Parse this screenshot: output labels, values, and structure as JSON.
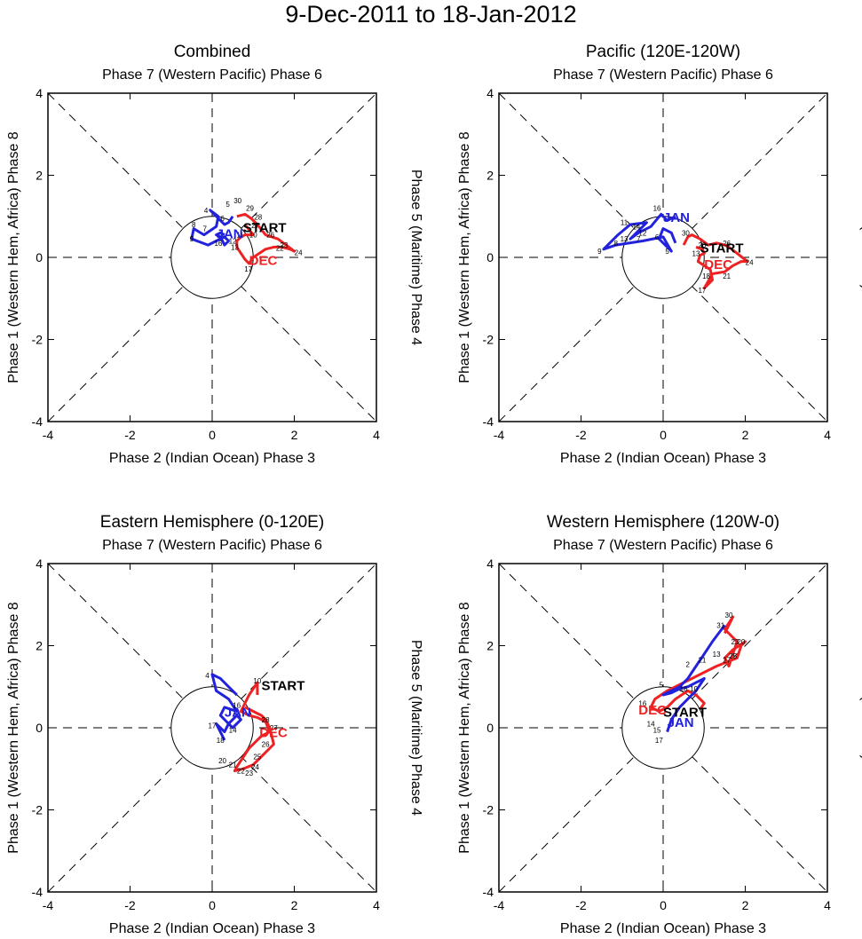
{
  "title": "9-Dec-2011 to 18-Jan-2012",
  "colors": {
    "dec": "#ee2222",
    "jan": "#2222dd",
    "axis": "#000000"
  },
  "common": {
    "top_label": "Phase 7 (Western Pacific) Phase 6",
    "bottom_label": "Phase 2 (Indian Ocean) Phase 3",
    "left_label": "Phase 1 (Western Hem, Africa) Phase 8",
    "right_label": "Phase 5 (Maritime) Phase 4",
    "start_label": "START",
    "dec_label": "DEC",
    "jan_label": "JAN",
    "ticks": [
      "-4",
      "-2",
      "0",
      "2",
      "4"
    ]
  },
  "chart_data": [
    {
      "type": "line",
      "title": "Combined",
      "xlim": [
        -4,
        4
      ],
      "ylim": [
        -4,
        4
      ],
      "series": [
        {
          "name": "DEC",
          "days": [
            9,
            10,
            11,
            12,
            13,
            14,
            15,
            16,
            17,
            18,
            19,
            20,
            21,
            22,
            23,
            24,
            25,
            26,
            27,
            28,
            29,
            30,
            31
          ],
          "x": [
            0.8,
            1.0,
            0.8,
            0.7,
            0.6,
            0.6,
            0.7,
            0.8,
            0.9,
            1.0,
            1.15,
            1.3,
            1.5,
            1.7,
            1.9,
            2.0,
            1.8,
            1.6,
            1.3,
            1.1,
            0.95,
            0.8,
            0.6
          ],
          "y": [
            0.8,
            0.55,
            0.55,
            0.5,
            0.4,
            0.25,
            0.1,
            -0.05,
            -0.15,
            0.0,
            0.1,
            0.2,
            0.25,
            0.25,
            0.2,
            0.15,
            0.3,
            0.45,
            0.55,
            0.8,
            0.95,
            1.05,
            1.0
          ]
        },
        {
          "name": "JAN",
          "days": [
            1,
            2,
            3,
            4,
            5,
            6,
            7,
            8,
            9,
            10,
            11,
            12,
            13,
            14,
            15,
            16,
            17,
            18
          ],
          "x": [
            0.5,
            0.4,
            0.3,
            -0.05,
            0.15,
            0.1,
            -0.2,
            -0.45,
            -0.5,
            -0.1,
            0.1,
            0.3,
            0.4,
            0.3,
            0.2,
            0.1,
            0.2,
            0.3
          ],
          "y": [
            1.0,
            0.85,
            0.8,
            1.15,
            1.0,
            0.75,
            0.55,
            0.7,
            0.45,
            0.3,
            0.4,
            0.5,
            0.4,
            0.3,
            0.5,
            0.55,
            0.6,
            0.55
          ]
        }
      ],
      "day_labels": [
        {
          "t": "4",
          "x": -0.15,
          "y": 1.15
        },
        {
          "t": "6",
          "x": 0.25,
          "y": 0.95
        },
        {
          "t": "5",
          "x": 0.38,
          "y": 1.3
        },
        {
          "t": "30",
          "x": 0.62,
          "y": 1.38
        },
        {
          "t": "29",
          "x": 0.92,
          "y": 1.2
        },
        {
          "t": "28",
          "x": 1.12,
          "y": 0.98
        },
        {
          "t": "27",
          "x": 1.05,
          "y": 0.78
        },
        {
          "t": "8",
          "x": -0.45,
          "y": 0.8
        },
        {
          "t": "7",
          "x": -0.18,
          "y": 0.7
        },
        {
          "t": "9",
          "x": -0.5,
          "y": 0.45
        },
        {
          "t": "11",
          "x": 0.68,
          "y": 0.55
        },
        {
          "t": "10",
          "x": 1.0,
          "y": 0.55
        },
        {
          "t": "26",
          "x": 1.42,
          "y": 0.55
        },
        {
          "t": "12",
          "x": 0.5,
          "y": 0.4
        },
        {
          "t": "13",
          "x": 0.55,
          "y": 0.25
        },
        {
          "t": "16",
          "x": 0.15,
          "y": 0.35
        },
        {
          "t": "23",
          "x": 1.75,
          "y": 0.3
        },
        {
          "t": "22",
          "x": 1.65,
          "y": 0.23
        },
        {
          "t": "24",
          "x": 2.1,
          "y": 0.12
        },
        {
          "t": "17",
          "x": 0.88,
          "y": -0.28
        }
      ],
      "start_pos": [
        0.75,
        0.75
      ],
      "dec_pos": [
        0.9,
        -0.05
      ],
      "jan_pos": [
        0.1,
        0.6
      ]
    },
    {
      "type": "line",
      "title": "Pacific (120E-120W)",
      "xlim": [
        -4,
        4
      ],
      "ylim": [
        -4,
        4
      ],
      "series": [
        {
          "name": "DEC",
          "days": [
            9,
            10,
            11,
            12,
            13,
            14,
            15,
            16,
            17,
            18,
            19,
            20,
            21,
            22,
            23,
            24,
            25,
            26,
            27,
            28,
            29,
            30,
            31
          ],
          "x": [
            0.8,
            0.95,
            1.0,
            0.9,
            0.85,
            1.0,
            1.15,
            1.2,
            1.0,
            1.2,
            1.5,
            1.7,
            1.9,
            2.05,
            1.8,
            1.6,
            1.5,
            1.3,
            1.1,
            0.9,
            0.7,
            0.6,
            0.5
          ],
          "y": [
            0.25,
            0.2,
            0.1,
            0.05,
            -0.1,
            -0.2,
            -0.3,
            -0.55,
            -0.75,
            -0.4,
            -0.35,
            -0.2,
            -0.1,
            -0.1,
            0.1,
            0.25,
            0.3,
            0.35,
            0.3,
            0.45,
            0.55,
            0.5,
            0.3
          ]
        },
        {
          "name": "JAN",
          "days": [
            1,
            2,
            3,
            4,
            5,
            6,
            7,
            8,
            9,
            10,
            11,
            12,
            13,
            14,
            15,
            16,
            17,
            18
          ],
          "x": [
            0.3,
            0.2,
            0.0,
            -0.1,
            0.2,
            0.0,
            -0.5,
            -1.15,
            -1.45,
            -1.1,
            -0.8,
            -0.4,
            -0.8,
            -0.6,
            -0.3,
            -0.05,
            0.1,
            0.3
          ],
          "y": [
            0.35,
            0.6,
            0.7,
            0.45,
            0.15,
            0.5,
            0.4,
            0.3,
            0.2,
            0.55,
            0.8,
            0.85,
            0.45,
            0.6,
            0.75,
            1.05,
            0.9,
            1.0
          ]
        }
      ],
      "day_labels": [
        {
          "t": "16",
          "x": -0.15,
          "y": 1.2
        },
        {
          "t": "14",
          "x": -0.65,
          "y": 0.75
        },
        {
          "t": "11",
          "x": -0.95,
          "y": 0.85
        },
        {
          "t": "13",
          "x": -0.95,
          "y": 0.45
        },
        {
          "t": "12",
          "x": -0.5,
          "y": 0.6
        },
        {
          "t": "8",
          "x": -1.15,
          "y": 0.35
        },
        {
          "t": "9",
          "x": -1.55,
          "y": 0.15
        },
        {
          "t": "7",
          "x": -0.6,
          "y": 0.45
        },
        {
          "t": "6",
          "x": -0.15,
          "y": 0.5
        },
        {
          "t": "5",
          "x": 0.1,
          "y": 0.15
        },
        {
          "t": "30",
          "x": 0.55,
          "y": 0.6
        },
        {
          "t": "20",
          "x": 0.95,
          "y": 0.3
        },
        {
          "t": "13",
          "x": 0.8,
          "y": 0.1
        },
        {
          "t": "26",
          "x": 1.55,
          "y": 0.35
        },
        {
          "t": "24",
          "x": 2.1,
          "y": -0.12
        },
        {
          "t": "18",
          "x": 1.05,
          "y": -0.45
        },
        {
          "t": "21",
          "x": 1.55,
          "y": -0.45
        },
        {
          "t": "17",
          "x": 0.95,
          "y": -0.8
        }
      ],
      "start_pos": [
        0.9,
        0.25
      ],
      "dec_pos": [
        1.0,
        -0.15
      ],
      "jan_pos": [
        0.0,
        1.0
      ]
    },
    {
      "type": "line",
      "title": "Eastern Hemisphere (0-120E)",
      "xlim": [
        -4,
        4
      ],
      "ylim": [
        -4,
        4
      ],
      "series": [
        {
          "name": "DEC",
          "days": [
            9,
            10,
            11,
            12,
            13,
            14,
            15,
            16,
            17,
            18,
            19,
            20,
            21,
            22,
            23,
            24,
            25,
            26,
            27,
            28,
            29,
            30,
            31
          ],
          "x": [
            1.1,
            1.1,
            0.9,
            0.7,
            0.8,
            0.9,
            1.1,
            1.3,
            1.4,
            1.2,
            0.9,
            0.7,
            0.6,
            0.55,
            0.75,
            1.0,
            1.2,
            1.5,
            1.4,
            1.3,
            1.2,
            1.0,
            0.8
          ],
          "y": [
            0.8,
            1.1,
            0.8,
            0.4,
            0.35,
            0.3,
            0.25,
            0.15,
            -0.1,
            -0.2,
            -0.5,
            -0.8,
            -0.95,
            -1.05,
            -1.0,
            -0.9,
            -0.7,
            -0.4,
            0.0,
            0.2,
            0.3,
            0.4,
            0.5
          ]
        },
        {
          "name": "JAN",
          "days": [
            1,
            2,
            3,
            4,
            5,
            6,
            7,
            8,
            9,
            10,
            11,
            12,
            13,
            14,
            15,
            16,
            17,
            18
          ],
          "x": [
            0.6,
            0.4,
            0.2,
            0.0,
            0.1,
            0.4,
            0.6,
            0.3,
            0.2,
            0.4,
            0.5,
            0.7,
            0.6,
            0.4,
            0.3,
            0.2,
            0.1,
            0.3
          ],
          "y": [
            0.8,
            1.0,
            1.2,
            1.3,
            0.9,
            0.7,
            0.4,
            0.5,
            0.3,
            0.1,
            0.0,
            0.2,
            0.3,
            0.1,
            -0.1,
            0.0,
            0.1,
            -0.3
          ]
        }
      ],
      "day_labels": [
        {
          "t": "4",
          "x": -0.12,
          "y": 1.28
        },
        {
          "t": "10",
          "x": 1.1,
          "y": 1.15
        },
        {
          "t": "16",
          "x": 0.6,
          "y": 0.55
        },
        {
          "t": "17",
          "x": 0.0,
          "y": 0.05
        },
        {
          "t": "14",
          "x": 0.5,
          "y": -0.05
        },
        {
          "t": "18",
          "x": 0.2,
          "y": -0.3
        },
        {
          "t": "20",
          "x": 0.25,
          "y": -0.8
        },
        {
          "t": "21",
          "x": 0.5,
          "y": -0.9
        },
        {
          "t": "22",
          "x": 0.7,
          "y": -1.05
        },
        {
          "t": "23",
          "x": 0.9,
          "y": -1.1
        },
        {
          "t": "24",
          "x": 1.05,
          "y": -0.95
        },
        {
          "t": "25",
          "x": 1.1,
          "y": -0.7
        },
        {
          "t": "26",
          "x": 1.3,
          "y": -0.4
        },
        {
          "t": "27",
          "x": 1.5,
          "y": 0.0
        },
        {
          "t": "28",
          "x": 1.3,
          "y": 0.2
        }
      ],
      "start_pos": [
        1.2,
        1.05
      ],
      "dec_pos": [
        1.15,
        -0.1
      ],
      "jan_pos": [
        0.3,
        0.4
      ]
    },
    {
      "type": "line",
      "title": "Western Hemisphere (120W-0)",
      "xlim": [
        -4,
        4
      ],
      "ylim": [
        -4,
        4
      ],
      "series": [
        {
          "name": "DEC",
          "days": [
            9,
            10,
            11,
            12,
            13,
            14,
            15,
            16,
            17,
            18,
            19,
            20,
            21,
            22,
            23,
            24,
            25,
            26,
            27,
            28,
            29,
            30,
            31
          ],
          "x": [
            0.9,
            1.0,
            0.8,
            0.6,
            0.3,
            0.1,
            -0.1,
            -0.3,
            -0.2,
            0.1,
            0.5,
            0.9,
            1.3,
            1.8,
            1.9,
            2.0,
            1.7,
            1.5,
            1.6,
            1.8,
            1.5,
            1.7,
            1.5
          ],
          "y": [
            0.45,
            0.6,
            0.8,
            0.9,
            0.7,
            0.5,
            0.4,
            0.5,
            0.7,
            0.9,
            1.1,
            1.3,
            1.5,
            1.7,
            2.0,
            2.1,
            1.9,
            1.7,
            1.5,
            2.1,
            2.4,
            2.7,
            2.3
          ]
        },
        {
          "name": "JAN",
          "days": [
            1,
            2,
            3,
            4,
            5,
            6,
            7,
            8,
            9,
            10,
            11,
            12,
            13,
            14,
            15,
            16,
            17,
            18
          ],
          "x": [
            1.5,
            1.2,
            1.0,
            0.8,
            0.6,
            0.4,
            0.2,
            0.0,
            0.2,
            0.4,
            0.6,
            0.8,
            1.0,
            0.8,
            0.6,
            0.4,
            0.2,
            0.1
          ],
          "y": [
            2.5,
            2.1,
            1.8,
            1.5,
            1.2,
            1.0,
            0.9,
            0.8,
            0.85,
            0.95,
            1.0,
            1.1,
            1.2,
            0.9,
            0.7,
            0.5,
            0.2,
            -0.1
          ]
        }
      ],
      "day_labels": [
        {
          "t": "30",
          "x": 1.6,
          "y": 2.75
        },
        {
          "t": "31",
          "x": 1.4,
          "y": 2.5
        },
        {
          "t": "23",
          "x": 1.75,
          "y": 2.1
        },
        {
          "t": "20",
          "x": 1.9,
          "y": 2.1
        },
        {
          "t": "13",
          "x": 1.3,
          "y": 1.8
        },
        {
          "t": "25",
          "x": 1.7,
          "y": 1.75
        },
        {
          "t": "21",
          "x": 0.95,
          "y": 1.65
        },
        {
          "t": "27",
          "x": 1.55,
          "y": 1.65
        },
        {
          "t": "2",
          "x": 0.6,
          "y": 1.55
        },
        {
          "t": "5",
          "x": -0.05,
          "y": 1.05
        },
        {
          "t": "18",
          "x": 0.5,
          "y": 0.95
        },
        {
          "t": "10",
          "x": 0.75,
          "y": 0.95
        },
        {
          "t": "16",
          "x": -0.5,
          "y": 0.6
        },
        {
          "t": "14",
          "x": -0.3,
          "y": 0.1
        },
        {
          "t": "15",
          "x": -0.15,
          "y": -0.05
        },
        {
          "t": "17",
          "x": -0.1,
          "y": -0.3
        }
      ],
      "start_pos": [
        0.0,
        0.4
      ],
      "dec_pos": [
        -0.6,
        0.45
      ],
      "jan_pos": [
        0.1,
        0.15
      ]
    }
  ]
}
